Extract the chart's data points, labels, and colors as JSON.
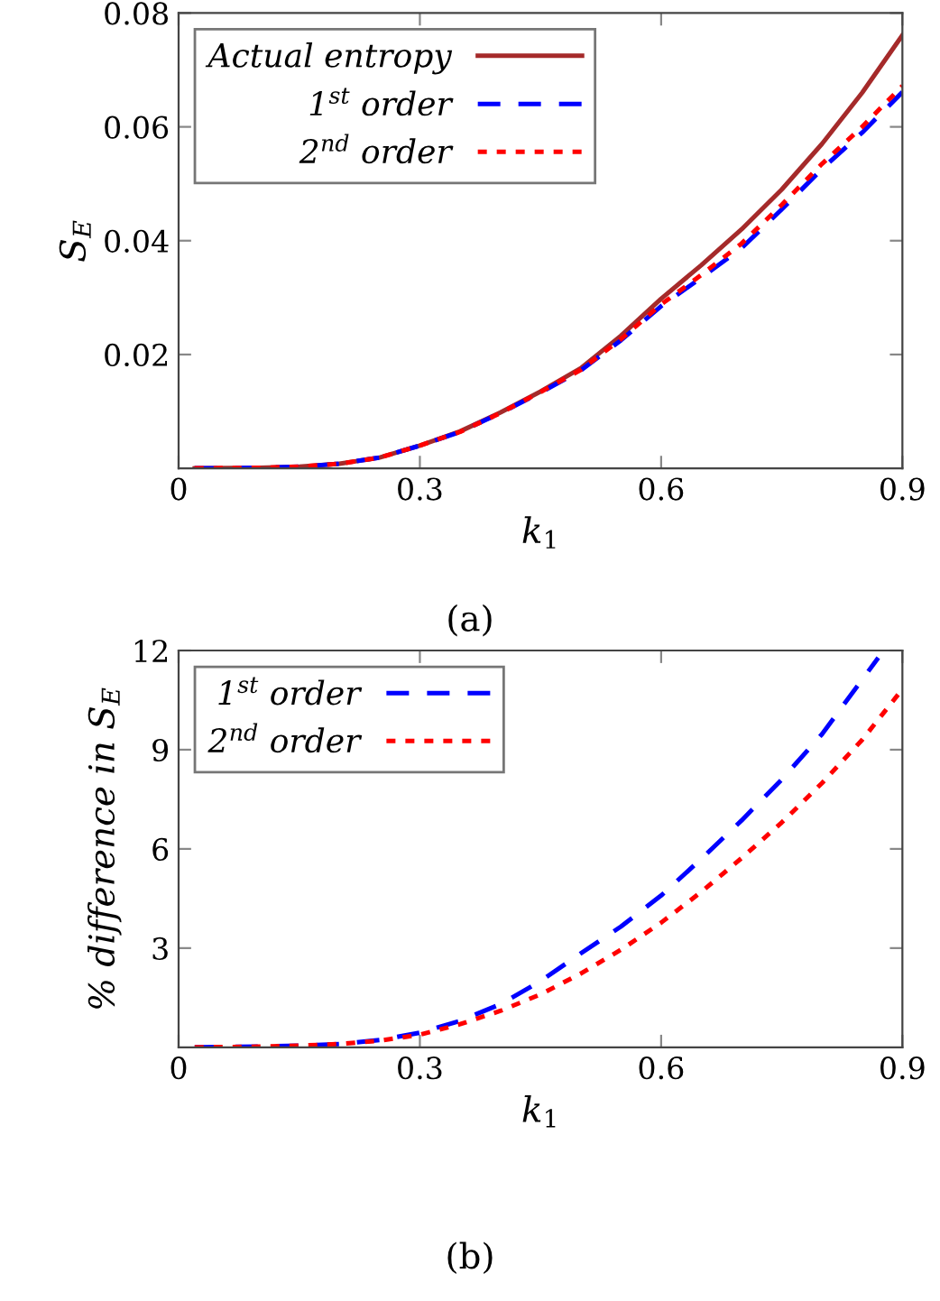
{
  "chart_data": [
    {
      "type": "line",
      "xlabel": "k$_{1}$",
      "ylabel": "S$_{E}$",
      "xlim": [
        0,
        0.9
      ],
      "ylim": [
        0,
        0.08
      ],
      "xticks": [
        0,
        0.3,
        0.6,
        0.9
      ],
      "yticks": [
        0.02,
        0.04,
        0.06,
        0.08
      ],
      "legend": "top left",
      "grid": false,
      "annotations": [
        "(a)"
      ],
      "x": [
        0.02,
        0.1,
        0.15,
        0.2,
        0.25,
        0.3,
        0.35,
        0.4,
        0.45,
        0.5,
        0.55,
        0.6,
        0.65,
        0.7,
        0.75,
        0.8,
        0.85,
        0.9
      ],
      "series": [
        {
          "name": "Actual entropy",
          "color": "#a52a2a",
          "line_style": "solid",
          "values": [
            0,
            0.0001,
            0.0003,
            0.0008,
            0.0019,
            0.004,
            0.0065,
            0.0098,
            0.0135,
            0.0176,
            0.0233,
            0.0298,
            0.0357,
            0.042,
            0.049,
            0.057,
            0.066,
            0.0761
          ]
        },
        {
          "name": "1$^{st}$ order",
          "color": "#0000ff",
          "line_style": "dashed",
          "values": [
            0,
            0.0001,
            0.0003,
            0.0008,
            0.0019,
            0.004,
            0.0064,
            0.0097,
            0.0133,
            0.0172,
            0.0225,
            0.0285,
            0.0335,
            0.0387,
            0.0455,
            0.0526,
            0.059,
            0.0661
          ]
        },
        {
          "name": "2$^{nd}$ order",
          "color": "#ff0000",
          "line_style": "dotted",
          "values": [
            0,
            0.0001,
            0.0003,
            0.0008,
            0.0019,
            0.004,
            0.0064,
            0.0097,
            0.0134,
            0.0173,
            0.0227,
            0.0288,
            0.034,
            0.0395,
            0.0463,
            0.0535,
            0.06,
            0.0672
          ]
        }
      ]
    },
    {
      "type": "line",
      "xlabel": "k$_{1}$",
      "ylabel": "% difference in S$_{E}$",
      "xlim": [
        0,
        0.9
      ],
      "ylim": [
        0,
        12
      ],
      "xticks": [
        0,
        0.3,
        0.6,
        0.9
      ],
      "yticks": [
        3,
        6,
        9,
        12
      ],
      "legend": "top left",
      "grid": false,
      "annotations": [
        "(b)"
      ],
      "series": [
        {
          "name": "1$^{st}$ order",
          "color": "#0000ff",
          "line_style": "dashed",
          "x": [
            0.02,
            0.1,
            0.15,
            0.2,
            0.25,
            0.3,
            0.35,
            0.4,
            0.45,
            0.5,
            0.55,
            0.6,
            0.65,
            0.7,
            0.75,
            0.8,
            0.87
          ],
          "values": [
            0,
            0.02,
            0.05,
            0.1,
            0.22,
            0.44,
            0.8,
            1.3,
            2.0,
            2.84,
            3.65,
            4.59,
            5.7,
            6.86,
            8.1,
            9.47,
            11.78
          ]
        },
        {
          "name": "2$^{nd}$ order",
          "color": "#ff0000",
          "line_style": "dotted",
          "x": [
            0.02,
            0.1,
            0.15,
            0.2,
            0.25,
            0.3,
            0.35,
            0.4,
            0.45,
            0.5,
            0.55,
            0.6,
            0.65,
            0.7,
            0.75,
            0.8,
            0.85,
            0.9
          ],
          "values": [
            0,
            0.02,
            0.05,
            0.1,
            0.2,
            0.38,
            0.7,
            1.1,
            1.6,
            2.23,
            2.95,
            3.77,
            4.7,
            5.72,
            6.8,
            7.99,
            9.3,
            10.83
          ]
        }
      ]
    }
  ]
}
